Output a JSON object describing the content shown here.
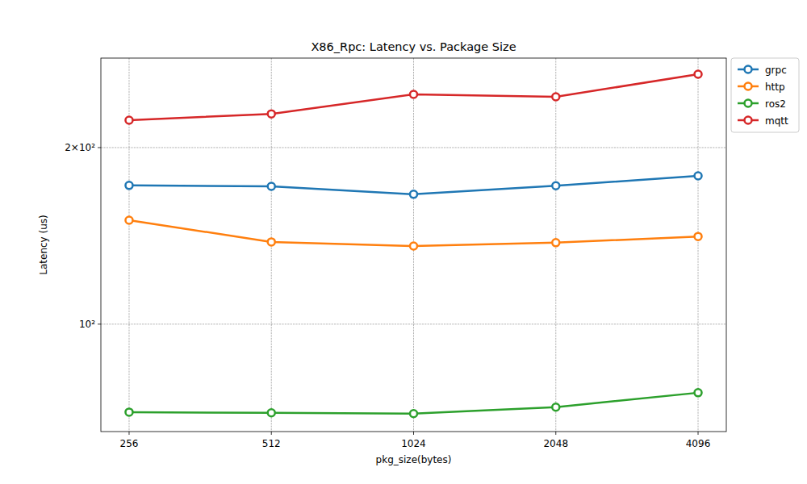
{
  "chart_data": {
    "type": "line",
    "title": "X86_Rpc: Latency vs. Package Size",
    "x_label": "pkg_size(bytes)",
    "y_label": "Latency (us)",
    "x": [
      256,
      512,
      1024,
      2048,
      4096
    ],
    "series": [
      {
        "name": "grpc",
        "color": "#1f77b4",
        "values": [
          172.4,
          171.8,
          166.5,
          172.2,
          179.0
        ]
      },
      {
        "name": "http",
        "color": "#ff7f0e",
        "values": [
          150.4,
          138.1,
          135.9,
          137.7,
          141.1
        ]
      },
      {
        "name": "ros2",
        "color": "#2ca02c",
        "values": [
          70.8,
          70.6,
          70.4,
          72.2,
          76.4
        ]
      },
      {
        "name": "mqtt",
        "color": "#d62728",
        "values": [
          222.7,
          228.3,
          246.5,
          244.1,
          266.8
        ]
      }
    ],
    "xlim": [
      223.1,
      4700
    ],
    "ylim": [
      65.6,
      284.2
    ],
    "xticks": [
      256,
      512,
      1024,
      2048,
      4096
    ],
    "yticks": [
      {
        "value": 100,
        "label": "10²"
      },
      {
        "value": 200,
        "label": "2×10²"
      }
    ],
    "log": true,
    "grid": true,
    "legend": "upper right",
    "marker": "circle",
    "line_style": "solid"
  }
}
